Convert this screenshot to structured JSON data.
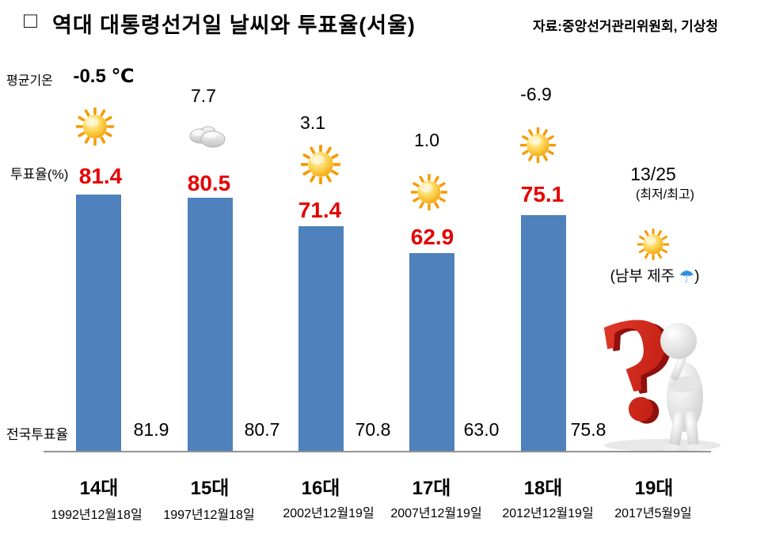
{
  "header": {
    "bullet": "□",
    "title": "역대 대통령선거일 날씨와 투표율(서울)",
    "source": "자료:중앙선거관리위원회, 기상청"
  },
  "labels": {
    "avg_temp": "평균기온",
    "seoul_turnout": "투표율(%)",
    "national_turnout": "전국투표율"
  },
  "colors": {
    "bar": "#4f81bd",
    "turnout_value": "#e50000",
    "axis": "#929292",
    "question_mark": "#d7231c"
  },
  "chart_data": {
    "type": "bar",
    "title": "역대 대통령선거일 날씨와 투표율(서울)",
    "source": "자료:중앙선거관리위원회, 기상청",
    "categories": [
      "14대",
      "15대",
      "16대",
      "17대",
      "18대",
      "19대"
    ],
    "dates": [
      "1992년12월18일",
      "1997년12월18일",
      "2002년12월19일",
      "2007년12월19일",
      "2012년12월19일",
      "2017년5월9일"
    ],
    "series": [
      {
        "name": "투표율(%) 서울",
        "values": [
          81.4,
          80.5,
          71.4,
          62.9,
          75.1,
          null
        ],
        "labels": [
          "81.4",
          "80.5",
          "71.4",
          "62.9",
          "75.1",
          ""
        ]
      },
      {
        "name": "전국투표율",
        "values": [
          81.9,
          80.7,
          70.8,
          63.0,
          75.8,
          null
        ],
        "labels": [
          "81.9",
          "80.7",
          "70.8",
          "63.0",
          "75.8",
          ""
        ]
      },
      {
        "name": "평균기온(℃)",
        "labels": [
          "-0.5 ℃",
          "7.7",
          "3.1",
          "1.0",
          "-6.9",
          "13/25"
        ]
      }
    ],
    "weather": [
      "sun",
      "cloud",
      "sun",
      "sun",
      "sun",
      "sun"
    ],
    "notes": {
      "minmax": "(최저/최고)",
      "region_prefix": "(남부 제주",
      "region_suffix": ")"
    },
    "ylim": [
      0,
      100
    ],
    "legend": "none",
    "grid": false
  }
}
